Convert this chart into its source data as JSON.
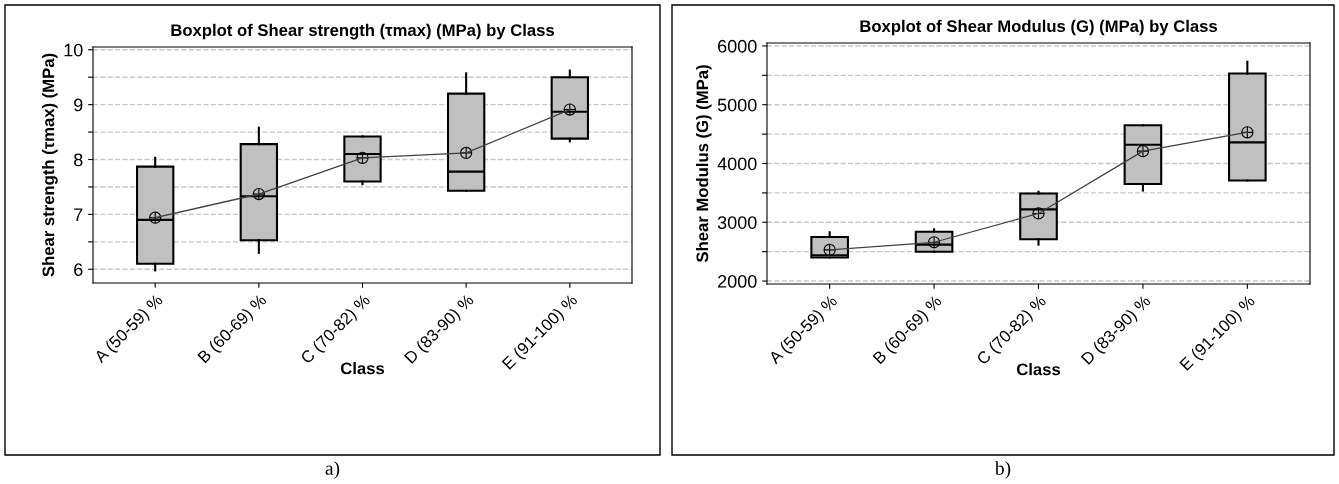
{
  "chart_data": [
    {
      "type": "box",
      "title": "Boxplot of Shear strength (τmax) (MPa) by Class",
      "xlabel": "Class",
      "ylabel": "Shear strength (τmax) (MPa)",
      "categories": [
        "A (50-59) %",
        "B (60-69) %",
        "C (70-82) %",
        "D (83-90) %",
        "E (91-100) %"
      ],
      "boxes": [
        {
          "low": 5.98,
          "q1": 6.1,
          "median": 6.9,
          "q3": 7.87,
          "high": 8.03,
          "mean": 6.94
        },
        {
          "low": 6.3,
          "q1": 6.53,
          "median": 7.33,
          "q3": 8.28,
          "high": 8.58,
          "mean": 7.37
        },
        {
          "low": 7.55,
          "q1": 7.6,
          "median": 8.1,
          "q3": 8.42,
          "high": 8.42,
          "mean": 8.03
        },
        {
          "low": 7.43,
          "q1": 7.43,
          "median": 7.78,
          "q3": 9.2,
          "high": 9.57,
          "mean": 8.12
        },
        {
          "low": 8.33,
          "q1": 8.38,
          "median": 8.87,
          "q3": 9.5,
          "high": 9.62,
          "mean": 8.91
        }
      ],
      "series": [
        {
          "type": "line",
          "color": "#404040",
          "values": [
            6.94,
            7.37,
            8.03,
            8.12,
            8.91
          ]
        }
      ],
      "color": "#c0c0c0",
      "ylim": [
        5.75,
        10.05
      ],
      "yticks": [
        6,
        {
          "value": 6.5,
          "label": null
        },
        7,
        {
          "value": 7.5,
          "label": null
        },
        8,
        {
          "value": 8.5,
          "label": null
        },
        9,
        {
          "value": 9.5,
          "label": null
        },
        10
      ],
      "grid": "y",
      "annotations": [
        "a)"
      ]
    },
    {
      "type": "box",
      "title": "Boxplot of Shear Modulus (G) (MPa) by Class",
      "xlabel": "Class",
      "ylabel": "Shear Modulus (G) (MPa)",
      "categories": [
        "A (50-59) %",
        "B (60-69) %",
        "C (70-82) %",
        "D (83-90) %",
        "E (91-100) %"
      ],
      "boxes": [
        {
          "low": 2400,
          "q1": 2400,
          "median": 2440,
          "q3": 2750,
          "high": 2830,
          "mean": 2530
        },
        {
          "low": 2500,
          "q1": 2500,
          "median": 2620,
          "q3": 2840,
          "high": 2880,
          "mean": 2660
        },
        {
          "low": 2620,
          "q1": 2710,
          "median": 3220,
          "q3": 3490,
          "high": 3520,
          "mean": 3150
        },
        {
          "low": 3540,
          "q1": 3650,
          "median": 4320,
          "q3": 4650,
          "high": 4650,
          "mean": 4210
        },
        {
          "low": 3710,
          "q1": 3710,
          "median": 4360,
          "q3": 5530,
          "high": 5730,
          "mean": 4530
        }
      ],
      "series": [
        {
          "type": "line",
          "color": "#404040",
          "values": [
            2530,
            2660,
            3150,
            4210,
            4530
          ]
        }
      ],
      "color": "#c0c0c0",
      "ylim": [
        1950,
        6050
      ],
      "yticks": [
        2000,
        {
          "value": 2500,
          "label": null
        },
        3000,
        {
          "value": 3500,
          "label": null
        },
        4000,
        {
          "value": 4500,
          "label": null
        },
        5000,
        {
          "value": 5500,
          "label": null
        },
        6000
      ],
      "grid": "y",
      "annotations": [
        "b)"
      ]
    }
  ]
}
